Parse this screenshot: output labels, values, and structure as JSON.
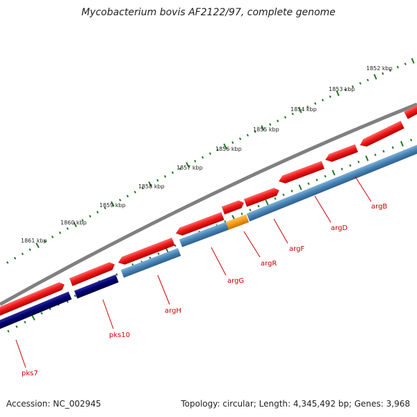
{
  "title": "Mycobacterium bovis AF2122/97, complete genome",
  "accession_text": "Accession: NC_002945",
  "summary_text": "Topology: circular; Length: 4,345,492 bp; Genes: 3,968",
  "scale_labels": [
    "1852 kbp",
    "1853 kbp",
    "1854 kbp",
    "1855 kbp",
    "1856 kbp",
    "1857 kbp",
    "1858 kbp",
    "1859 kbp",
    "1860 kbp",
    "1861 kbp"
  ],
  "genes": [
    {
      "name": "argB",
      "color": "#d40000"
    },
    {
      "name": "argD",
      "color": "#d40000"
    },
    {
      "name": "argF",
      "color": "#d40000"
    },
    {
      "name": "argR",
      "color": "#d40000"
    },
    {
      "name": "argG",
      "color": "#d40000"
    },
    {
      "name": "argH",
      "color": "#d40000"
    },
    {
      "name": "pks10",
      "color": "#d40000"
    },
    {
      "name": "pks7",
      "color": "#d40000"
    }
  ],
  "colors": {
    "backbone": "#808080",
    "cds_forward": "#ee1c1c",
    "track_steelblue": "#4682b4",
    "track_navy": "#00006e",
    "track_orange": "#f59a12",
    "tick_green": "#1f7a1f",
    "gene_label": "#cc0000"
  }
}
